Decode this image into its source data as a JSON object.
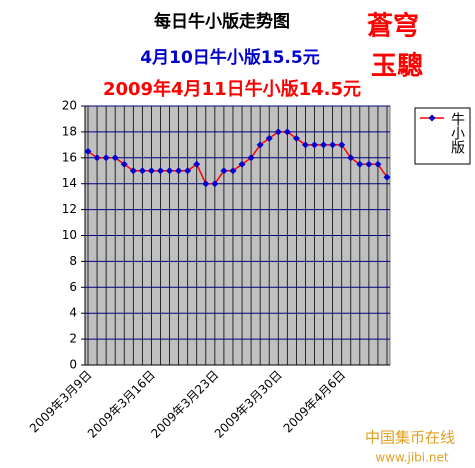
{
  "chart_data": {
    "type": "line",
    "title": "每日牛小版走势图",
    "subtitle": "4月10日牛小版15.5元",
    "annotation": "2009年4月11日牛小版14.5元",
    "brand": [
      "蒼穹",
      "玉驄"
    ],
    "watermark": [
      "中国集币在线",
      "www.jibi.net"
    ],
    "categories": [
      "2009年3月9日",
      null,
      null,
      null,
      null,
      null,
      null,
      "2009年3月16日",
      null,
      null,
      null,
      null,
      null,
      null,
      "2009年3月23日",
      null,
      null,
      null,
      null,
      null,
      null,
      "2009年3月30日",
      null,
      null,
      null,
      null,
      null,
      null,
      "2009年4月6日",
      null,
      null,
      null,
      null,
      null
    ],
    "series": [
      {
        "name": "牛小版",
        "color": "#ff0000",
        "marker_color": "#0000cc",
        "values": [
          16.5,
          16,
          16,
          16,
          15.5,
          15,
          15,
          15,
          15,
          15,
          15,
          15,
          15.5,
          14,
          14,
          15,
          15,
          15.5,
          16,
          17,
          17.5,
          18,
          18,
          17.5,
          17,
          17,
          17,
          17,
          17,
          16,
          15.5,
          15.5,
          15.5,
          14.5
        ]
      }
    ],
    "ylim": [
      0,
      20
    ],
    "yticks": [
      0,
      2,
      4,
      6,
      8,
      10,
      12,
      14,
      16,
      18,
      20
    ],
    "grid": true,
    "legend": "right"
  }
}
